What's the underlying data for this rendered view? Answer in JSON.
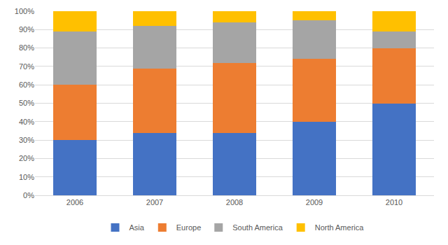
{
  "chart_data": {
    "type": "bar",
    "stacked": true,
    "categories": [
      "2006",
      "2007",
      "2008",
      "2009",
      "2010"
    ],
    "series": [
      {
        "name": "Asia",
        "color": "#4472c4",
        "values": [
          30,
          34,
          34,
          40,
          50
        ]
      },
      {
        "name": "Europe",
        "color": "#ed7d31",
        "values": [
          30,
          35,
          38,
          34,
          30
        ]
      },
      {
        "name": "South America",
        "color": "#a5a5a5",
        "values": [
          29,
          23,
          22,
          21,
          9
        ]
      },
      {
        "name": "North America",
        "color": "#ffc000",
        "values": [
          11,
          8,
          6,
          5,
          11
        ]
      }
    ],
    "ylim": [
      0,
      100
    ],
    "yticks": [
      {
        "value": 0,
        "label": "0%"
      },
      {
        "value": 10,
        "label": "10%"
      },
      {
        "value": 20,
        "label": "20%"
      },
      {
        "value": 30,
        "label": "30%"
      },
      {
        "value": 40,
        "label": "40%"
      },
      {
        "value": 50,
        "label": "50%"
      },
      {
        "value": 60,
        "label": "60%"
      },
      {
        "value": 70,
        "label": "70%"
      },
      {
        "value": 80,
        "label": "80%"
      },
      {
        "value": 90,
        "label": "90%"
      },
      {
        "value": 100,
        "label": "100%"
      }
    ],
    "grid": true,
    "legend": "bottom"
  }
}
